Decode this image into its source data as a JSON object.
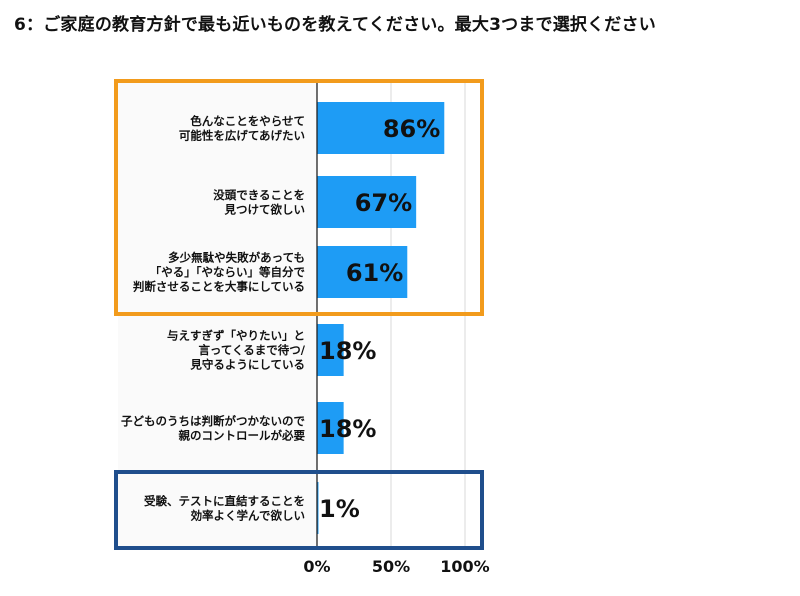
{
  "title": "6：ご家庭の教育方針で最も近いものを教えてください。最大3つまで選択ください",
  "colors": {
    "bar": "#1e9cf5",
    "highlight_top": "#f29b1c",
    "highlight_bottom": "#1f4e8c",
    "grid": "#d9d9d9",
    "axis": "#222222",
    "plot_bg": "#ffffff",
    "label_bg": "#fafafa"
  },
  "chart_data": {
    "type": "bar",
    "orientation": "horizontal",
    "categories": [
      [
        "色んなことをやらせて",
        "可能性を広げてあげたい"
      ],
      [
        "没頭できることを",
        "見つけて欲しい"
      ],
      [
        "多少無駄や失敗があっても",
        "「やる」「やならい」等自分で",
        "判断させることを大事にしている"
      ],
      [
        "与えすぎず「やりたい」と",
        "言ってくるまで待つ/",
        "見守るようにしている"
      ],
      [
        "子どものうちは判断がつかないので",
        "親のコントロールが必要"
      ],
      [
        "受験、テストに直結することを",
        "効率よく学んで欲しい"
      ]
    ],
    "values": [
      86,
      67,
      61,
      18,
      18,
      1
    ],
    "value_labels": [
      "86%",
      "67%",
      "61%",
      "18%",
      "18%",
      "1%"
    ],
    "xlim": [
      0,
      100
    ],
    "x_ticks": [
      0,
      50,
      100
    ],
    "x_tick_labels": [
      "0%",
      "50%",
      "100%"
    ],
    "grid": true,
    "highlight_groups": [
      {
        "color": "highlight_top",
        "indices": [
          0,
          1,
          2
        ]
      },
      {
        "color": "highlight_bottom",
        "indices": [
          5
        ]
      }
    ]
  }
}
